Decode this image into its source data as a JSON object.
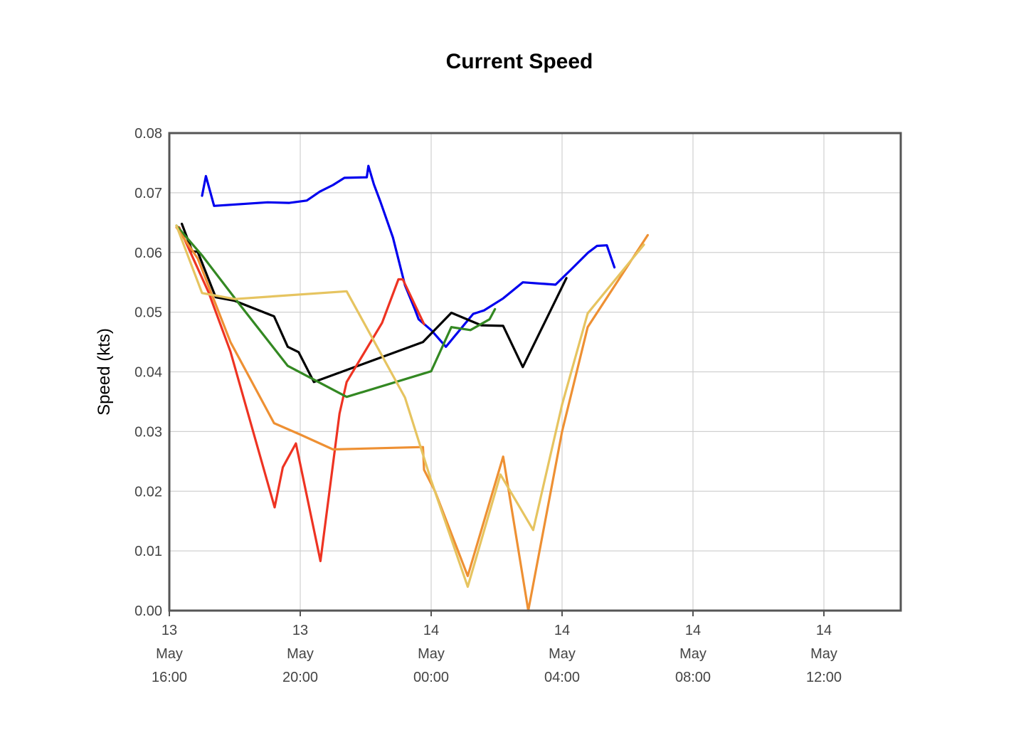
{
  "chart_data": {
    "type": "line",
    "title": "Current Speed",
    "xlabel": "",
    "ylabel": "Speed (kts)",
    "ylim": [
      0,
      0.08
    ],
    "xlim": [
      "13 May 16:00",
      "14 May 15:00"
    ],
    "grid": true,
    "y_ticks": [
      "0.00",
      "0.01",
      "0.02",
      "0.03",
      "0.04",
      "0.05",
      "0.06",
      "0.07",
      "0.08"
    ],
    "x_ticks": [
      {
        "at": "13 May 16:00",
        "lines": [
          "13",
          "May",
          "16:00"
        ]
      },
      {
        "at": "13 May 20:00",
        "lines": [
          "13",
          "May",
          "20:00"
        ]
      },
      {
        "at": "14 May 00:00",
        "lines": [
          "14",
          "May",
          "00:00"
        ]
      },
      {
        "at": "14 May 04:00",
        "lines": [
          "14",
          "May",
          "04:00"
        ]
      },
      {
        "at": "14 May 08:00",
        "lines": [
          "14",
          "May",
          "08:00"
        ]
      },
      {
        "at": "14 May 12:00",
        "lines": [
          "14",
          "May",
          "12:00"
        ]
      }
    ],
    "series": [
      {
        "color": "#0000ee",
        "points": [
          [
            "13 May 17:00",
            0.0695
          ],
          [
            "13 May 17:07",
            0.0728
          ],
          [
            "13 May 17:22",
            0.0678
          ],
          [
            "13 May 19:00",
            0.0684
          ],
          [
            "13 May 19:40",
            0.0683
          ],
          [
            "13 May 20:12",
            0.0687
          ],
          [
            "13 May 20:36",
            0.0702
          ],
          [
            "13 May 21:00",
            0.0713
          ],
          [
            "13 May 21:21",
            0.0725
          ],
          [
            "13 May 22:02",
            0.0726
          ],
          [
            "13 May 22:05",
            0.0745
          ],
          [
            "13 May 22:15",
            0.0714
          ],
          [
            "13 May 22:27",
            0.0685
          ],
          [
            "13 May 22:50",
            0.0625
          ],
          [
            "13 May 23:12",
            0.0545
          ],
          [
            "13 May 23:30",
            0.0505
          ],
          [
            "13 May 23:37",
            0.0488
          ],
          [
            "14 May 00:00",
            0.047
          ],
          [
            "14 May 00:27",
            0.0442
          ],
          [
            "14 May 01:17",
            0.0497
          ],
          [
            "14 May 01:37",
            0.0503
          ],
          [
            "14 May 02:12",
            0.0523
          ],
          [
            "14 May 02:48",
            0.055
          ],
          [
            "14 May 03:48",
            0.0546
          ],
          [
            "14 May 04:15",
            0.057
          ],
          [
            "14 May 04:48",
            0.06
          ],
          [
            "14 May 05:04",
            0.0611
          ],
          [
            "14 May 05:22",
            0.0612
          ],
          [
            "14 May 05:36",
            0.0575
          ]
        ]
      },
      {
        "color": "#000000",
        "points": [
          [
            "13 May 16:23",
            0.0648
          ],
          [
            "13 May 16:42",
            0.0602
          ],
          [
            "13 May 16:52",
            0.0601
          ],
          [
            "13 May 17:25",
            0.0525
          ],
          [
            "13 May 18:00",
            0.0519
          ],
          [
            "13 May 19:12",
            0.0493
          ],
          [
            "13 May 19:37",
            0.0442
          ],
          [
            "13 May 19:57",
            0.0433
          ],
          [
            "13 May 20:25",
            0.0383
          ],
          [
            "13 May 23:45",
            0.045
          ],
          [
            "14 May 00:37",
            0.0499
          ],
          [
            "14 May 01:32",
            0.0478
          ],
          [
            "14 May 02:12",
            0.0477
          ],
          [
            "14 May 02:48",
            0.0408
          ],
          [
            "14 May 04:08",
            0.0557
          ]
        ]
      },
      {
        "color": "#ee3322",
        "points": [
          [
            "13 May 16:18",
            0.0642
          ],
          [
            "13 May 17:12",
            0.0533
          ],
          [
            "13 May 17:52",
            0.0434
          ],
          [
            "13 May 19:13",
            0.0173
          ],
          [
            "13 May 19:28",
            0.024
          ],
          [
            "13 May 19:52",
            0.028
          ],
          [
            "13 May 20:37",
            0.0083
          ],
          [
            "13 May 21:12",
            0.033
          ],
          [
            "13 May 21:25",
            0.0383
          ],
          [
            "13 May 22:30",
            0.0482
          ],
          [
            "13 May 23:00",
            0.0555
          ],
          [
            "13 May 23:08",
            0.0555
          ],
          [
            "13 May 23:47",
            0.048
          ]
        ]
      },
      {
        "color": "#338822",
        "points": [
          [
            "13 May 16:13",
            0.0645
          ],
          [
            "13 May 17:00",
            0.0595
          ],
          [
            "13 May 18:07",
            0.0515
          ],
          [
            "13 May 19:37",
            0.041
          ],
          [
            "13 May 21:25",
            0.0358
          ],
          [
            "14 May 00:00",
            0.0401
          ],
          [
            "14 May 00:37",
            0.0475
          ],
          [
            "14 May 01:12",
            0.047
          ],
          [
            "14 May 01:47",
            0.0488
          ],
          [
            "14 May 01:57",
            0.0505
          ]
        ]
      },
      {
        "color": "#ee9033",
        "points": [
          [
            "13 May 16:13",
            0.0642
          ],
          [
            "13 May 16:52",
            0.059
          ],
          [
            "13 May 17:52",
            0.045
          ],
          [
            "13 May 19:12",
            0.0314
          ],
          [
            "13 May 20:00",
            0.0295
          ],
          [
            "13 May 21:00",
            0.027
          ],
          [
            "13 May 23:45",
            0.0274
          ],
          [
            "13 May 23:47",
            0.0236
          ],
          [
            "14 May 00:07",
            0.02
          ],
          [
            "14 May 01:07",
            0.0058
          ],
          [
            "14 May 02:12",
            0.0258
          ],
          [
            "14 May 02:58",
            0.0
          ],
          [
            "14 May 04:00",
            0.03
          ],
          [
            "14 May 04:47",
            0.0475
          ],
          [
            "14 May 06:37",
            0.0629
          ]
        ]
      },
      {
        "color": "#e6c460",
        "points": [
          [
            "13 May 16:13",
            0.0645
          ],
          [
            "13 May 17:00",
            0.0532
          ],
          [
            "13 May 18:00",
            0.0522
          ],
          [
            "13 May 21:25",
            0.0535
          ],
          [
            "13 May 23:12",
            0.0357
          ],
          [
            "14 May 00:00",
            0.0218
          ],
          [
            "14 May 01:07",
            0.004
          ],
          [
            "14 May 02:07",
            0.0228
          ],
          [
            "14 May 03:07",
            0.0135
          ],
          [
            "14 May 04:00",
            0.0345
          ],
          [
            "14 May 04:47",
            0.0498
          ],
          [
            "14 May 06:30",
            0.0613
          ]
        ]
      }
    ]
  }
}
